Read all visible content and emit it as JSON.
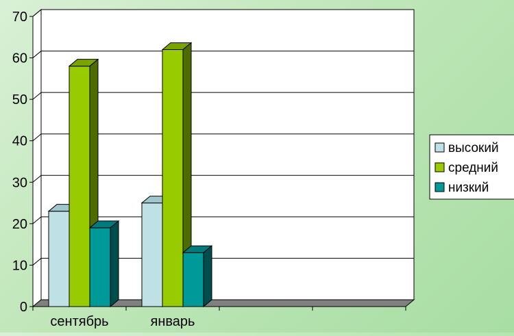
{
  "chart_data": {
    "type": "bar",
    "categories": [
      "сентябрь",
      "январь",
      "",
      ""
    ],
    "series": [
      {
        "name": "высокий",
        "values": [
          23,
          25,
          null,
          null
        ]
      },
      {
        "name": "средний",
        "values": [
          58,
          62,
          null,
          null
        ]
      },
      {
        "name": "низкий",
        "values": [
          19,
          13,
          null,
          null
        ]
      }
    ],
    "ylim": [
      0,
      70
    ],
    "yticks": [
      0,
      10,
      20,
      30,
      40,
      50,
      60,
      70
    ],
    "title": "",
    "xlabel": "",
    "ylabel": "",
    "grid": true,
    "legend_position": "right",
    "style": "3d-clustered-column",
    "colors": {
      "высокий": {
        "front": "#bfe0e4",
        "top": "#9fc6cc",
        "side": "#7fa8ae"
      },
      "средний": {
        "front": "#99cc00",
        "top": "#7aa300",
        "side": "#4d6b00"
      },
      "низкий": {
        "front": "#00999a",
        "top": "#007a7b",
        "side": "#004d4e"
      }
    },
    "plot_background": "#ffffff",
    "floor_color": "#808080"
  }
}
